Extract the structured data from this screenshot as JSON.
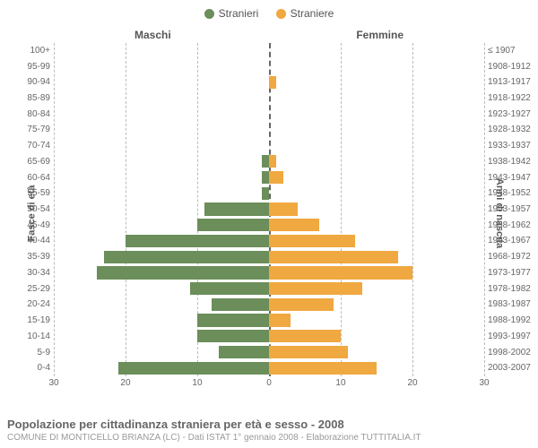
{
  "legend": {
    "male": {
      "label": "Stranieri",
      "color": "#6b8e5a"
    },
    "female": {
      "label": "Straniere",
      "color": "#f0a840"
    }
  },
  "columns": {
    "male": "Maschi",
    "female": "Femmine"
  },
  "axis_titles": {
    "left": "Fasce di età",
    "right": "Anni di nascita"
  },
  "chart": {
    "type": "population-pyramid",
    "xlim": 30,
    "xticks": [
      30,
      20,
      10,
      0,
      10,
      20,
      30
    ],
    "grid_color": "#bbbbbb",
    "center_color": "#666666",
    "bar_male_color": "#6b8e5a",
    "bar_female_color": "#f0a840",
    "background_color": "#ffffff",
    "label_fontsize": 10,
    "rows": [
      {
        "age": "100+",
        "birth": "≤ 1907",
        "m": 0,
        "f": 0
      },
      {
        "age": "95-99",
        "birth": "1908-1912",
        "m": 0,
        "f": 0
      },
      {
        "age": "90-94",
        "birth": "1913-1917",
        "m": 0,
        "f": 1
      },
      {
        "age": "85-89",
        "birth": "1918-1922",
        "m": 0,
        "f": 0
      },
      {
        "age": "80-84",
        "birth": "1923-1927",
        "m": 0,
        "f": 0
      },
      {
        "age": "75-79",
        "birth": "1928-1932",
        "m": 0,
        "f": 0
      },
      {
        "age": "70-74",
        "birth": "1933-1937",
        "m": 0,
        "f": 0
      },
      {
        "age": "65-69",
        "birth": "1938-1942",
        "m": 1,
        "f": 1
      },
      {
        "age": "60-64",
        "birth": "1943-1947",
        "m": 1,
        "f": 2
      },
      {
        "age": "55-59",
        "birth": "1948-1952",
        "m": 1,
        "f": 0
      },
      {
        "age": "50-54",
        "birth": "1953-1957",
        "m": 9,
        "f": 4
      },
      {
        "age": "45-49",
        "birth": "1958-1962",
        "m": 10,
        "f": 7
      },
      {
        "age": "40-44",
        "birth": "1963-1967",
        "m": 20,
        "f": 12
      },
      {
        "age": "35-39",
        "birth": "1968-1972",
        "m": 23,
        "f": 18
      },
      {
        "age": "30-34",
        "birth": "1973-1977",
        "m": 24,
        "f": 20
      },
      {
        "age": "25-29",
        "birth": "1978-1982",
        "m": 11,
        "f": 13
      },
      {
        "age": "20-24",
        "birth": "1983-1987",
        "m": 8,
        "f": 9
      },
      {
        "age": "15-19",
        "birth": "1988-1992",
        "m": 10,
        "f": 3
      },
      {
        "age": "10-14",
        "birth": "1993-1997",
        "m": 10,
        "f": 10
      },
      {
        "age": "5-9",
        "birth": "1998-2002",
        "m": 7,
        "f": 11
      },
      {
        "age": "0-4",
        "birth": "2003-2007",
        "m": 21,
        "f": 15
      }
    ]
  },
  "footer": {
    "title": "Popolazione per cittadinanza straniera per età e sesso - 2008",
    "subtitle": "COMUNE DI MONTICELLO BRIANZA (LC) - Dati ISTAT 1° gennaio 2008 - Elaborazione TUTTITALIA.IT"
  }
}
